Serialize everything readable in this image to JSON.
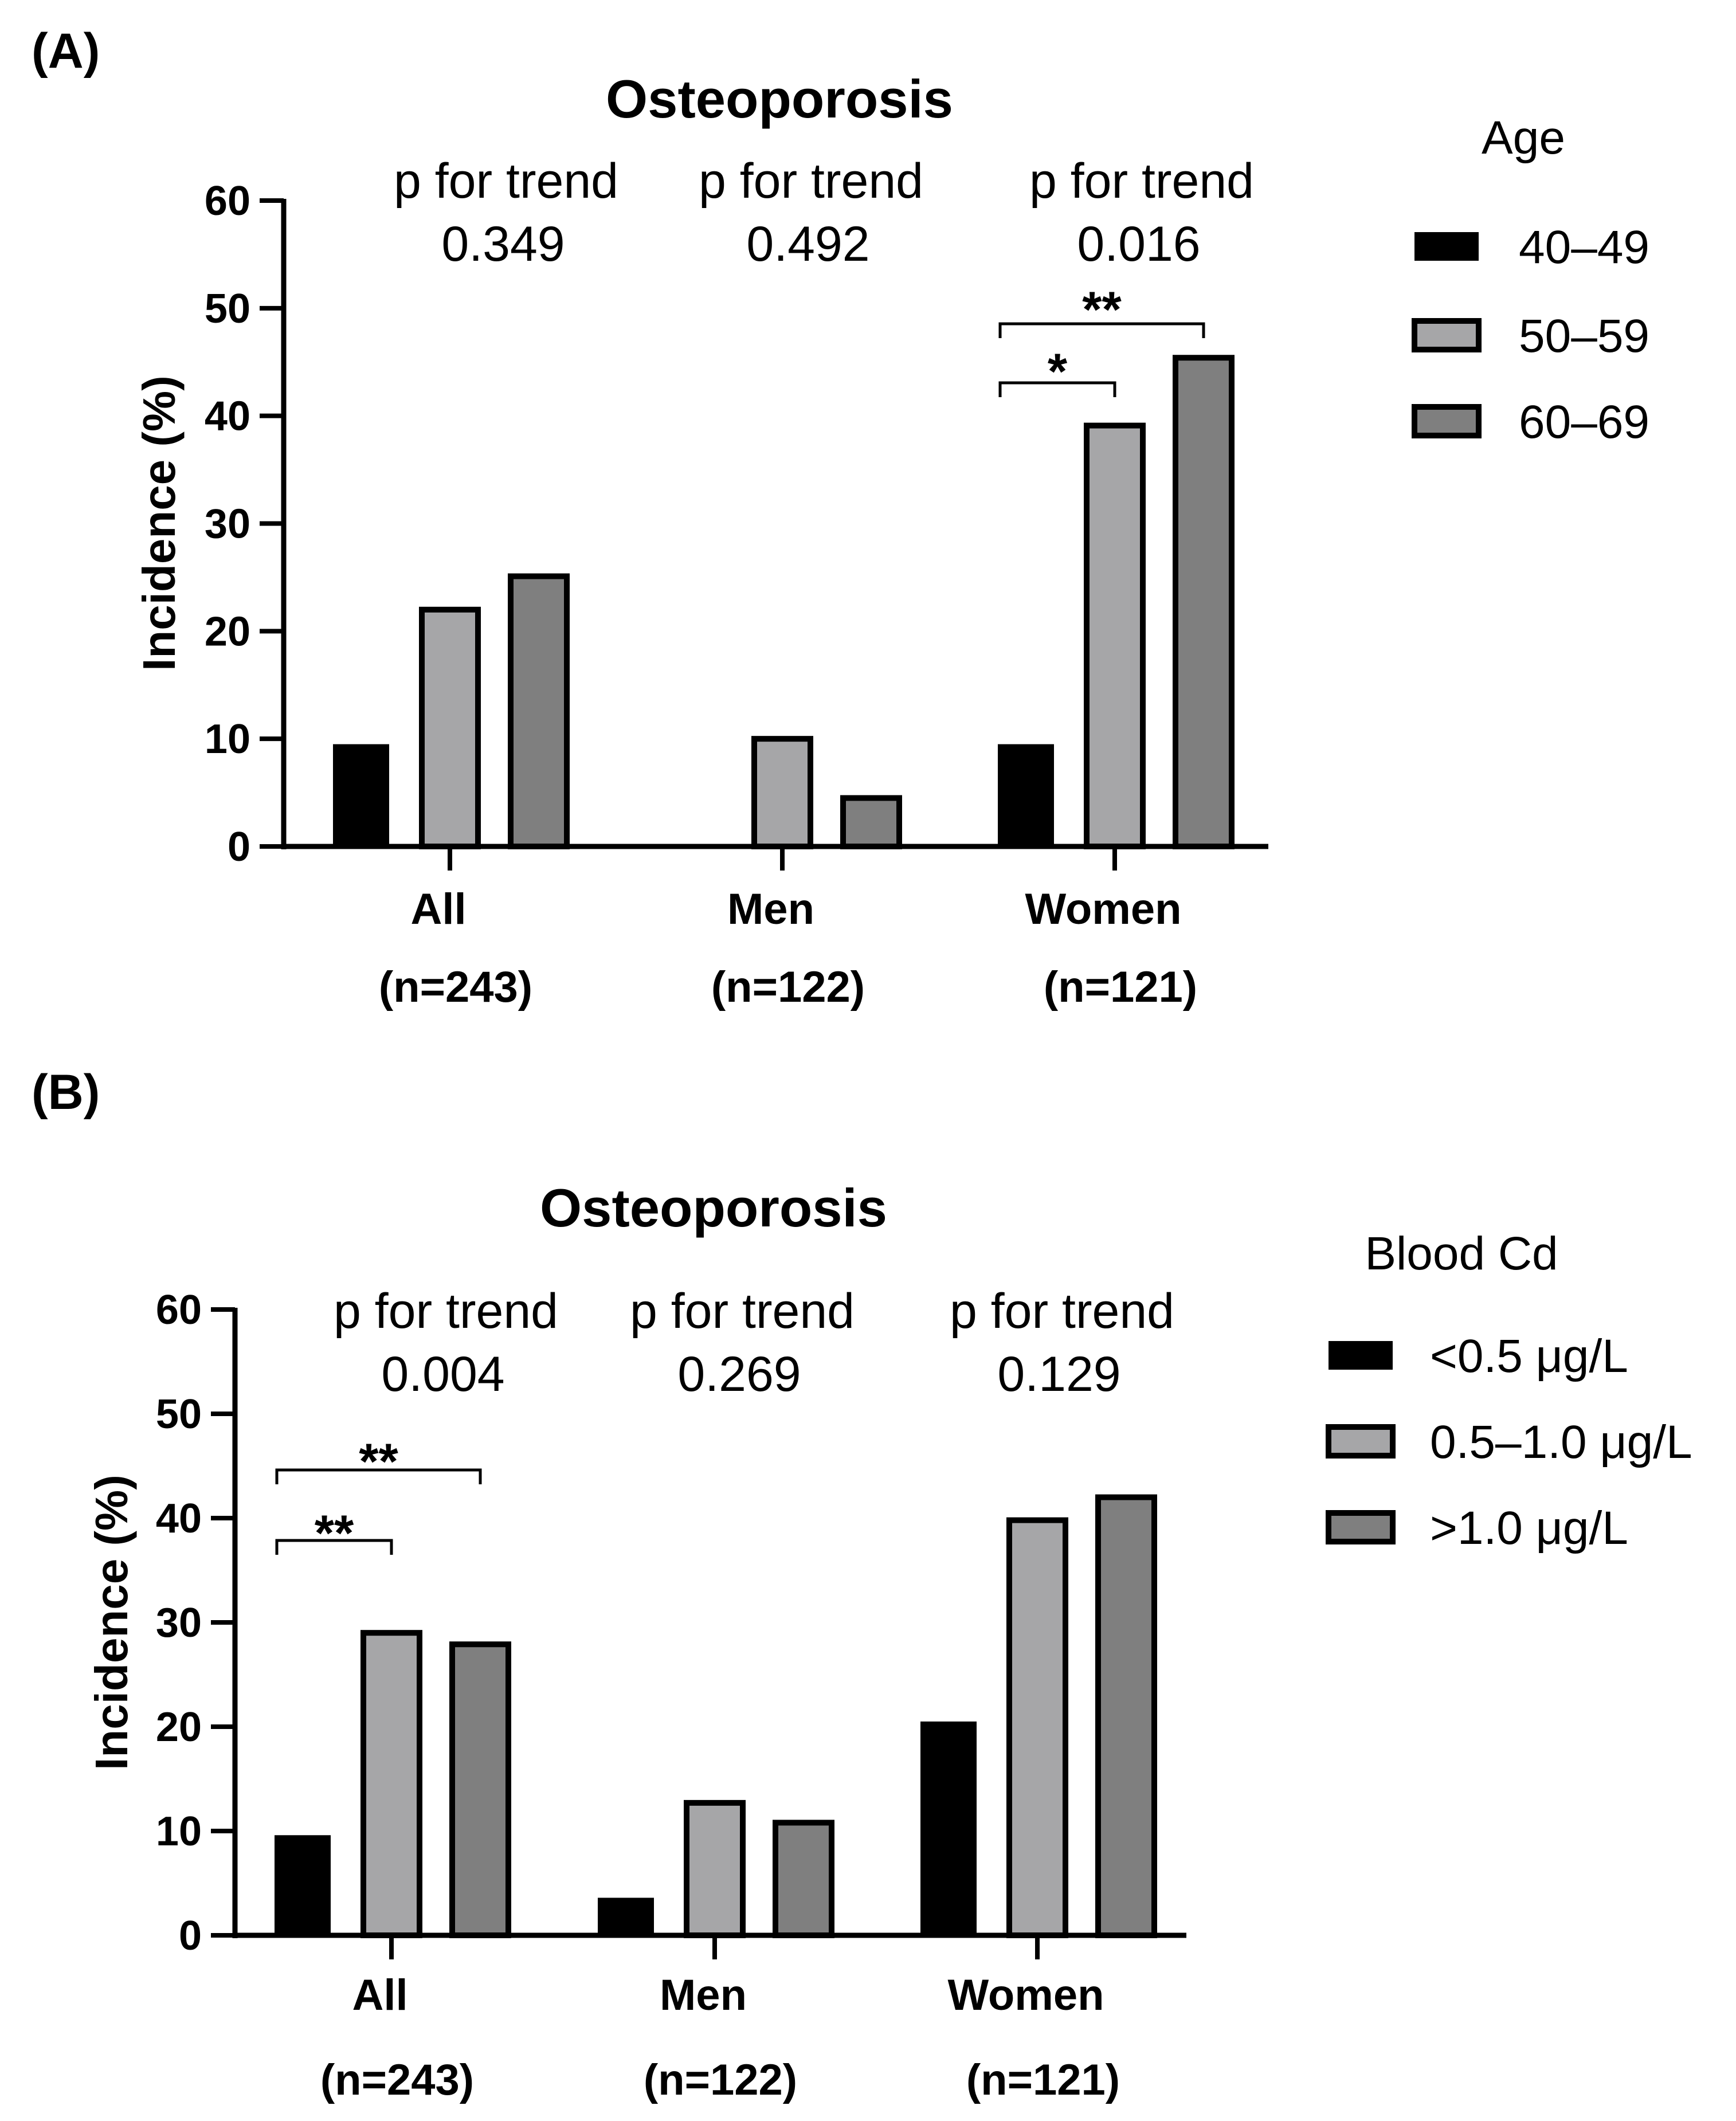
{
  "chart_data": [
    {
      "type": "bar",
      "panel_label": "(A)",
      "title": "Osteoporosis",
      "xlabel": "",
      "ylabel": "Incidence (%)",
      "ylim": [
        0,
        60
      ],
      "yticks": [
        0,
        10,
        20,
        30,
        40,
        50,
        60
      ],
      "categories": [
        "All",
        "Men",
        "Women"
      ],
      "category_sublabels": [
        "(n=243)",
        "(n=122)",
        "(n=121)"
      ],
      "legend_title": "Age",
      "legend_position": "right",
      "series": [
        {
          "name": "40–49",
          "color": "#000000",
          "values": [
            9.5,
            0,
            9.5
          ]
        },
        {
          "name": "50–59",
          "color": "#a6a6a8",
          "values": [
            22.0,
            10.0,
            39.1
          ]
        },
        {
          "name": "60–69",
          "color": "#7f7f7f",
          "values": [
            25.1,
            4.5,
            45.4
          ]
        }
      ],
      "trend_label": "p for trend",
      "trend_values": [
        "0.349",
        "0.492",
        "0.016"
      ],
      "significance": [
        {
          "category": 2,
          "from_series": 0,
          "to_series": 1,
          "label": "*"
        },
        {
          "category": 2,
          "from_series": 0,
          "to_series": 2,
          "label": "**"
        }
      ],
      "grid": false
    },
    {
      "type": "bar",
      "panel_label": "(B)",
      "title": "Osteoporosis",
      "xlabel": "",
      "ylabel": "Incidence (%)",
      "ylim": [
        0,
        60
      ],
      "yticks": [
        0,
        10,
        20,
        30,
        40,
        50,
        60
      ],
      "categories": [
        "All",
        "Men",
        "Women"
      ],
      "category_sublabels": [
        "(n=243)",
        "(n=122)",
        "(n=121)"
      ],
      "legend_title": "Blood  Cd",
      "legend_position": "right",
      "series": [
        {
          "name": "<0.5 μg/L",
          "color": "#000000",
          "values": [
            9.6,
            3.6,
            20.5
          ]
        },
        {
          "name": "0.5–1.0 μg/L",
          "color": "#a6a6a8",
          "values": [
            29.0,
            12.7,
            39.8
          ]
        },
        {
          "name": ">1.0 μg/L",
          "color": "#7f7f7f",
          "values": [
            27.9,
            10.8,
            42.0
          ]
        }
      ],
      "trend_label": "p for trend",
      "trend_values": [
        "0.004",
        "0.269",
        "0.129"
      ],
      "significance": [
        {
          "category": 0,
          "from_series": 0,
          "to_series": 1,
          "label": "**"
        },
        {
          "category": 0,
          "from_series": 0,
          "to_series": 2,
          "label": "**"
        }
      ],
      "grid": false
    }
  ]
}
